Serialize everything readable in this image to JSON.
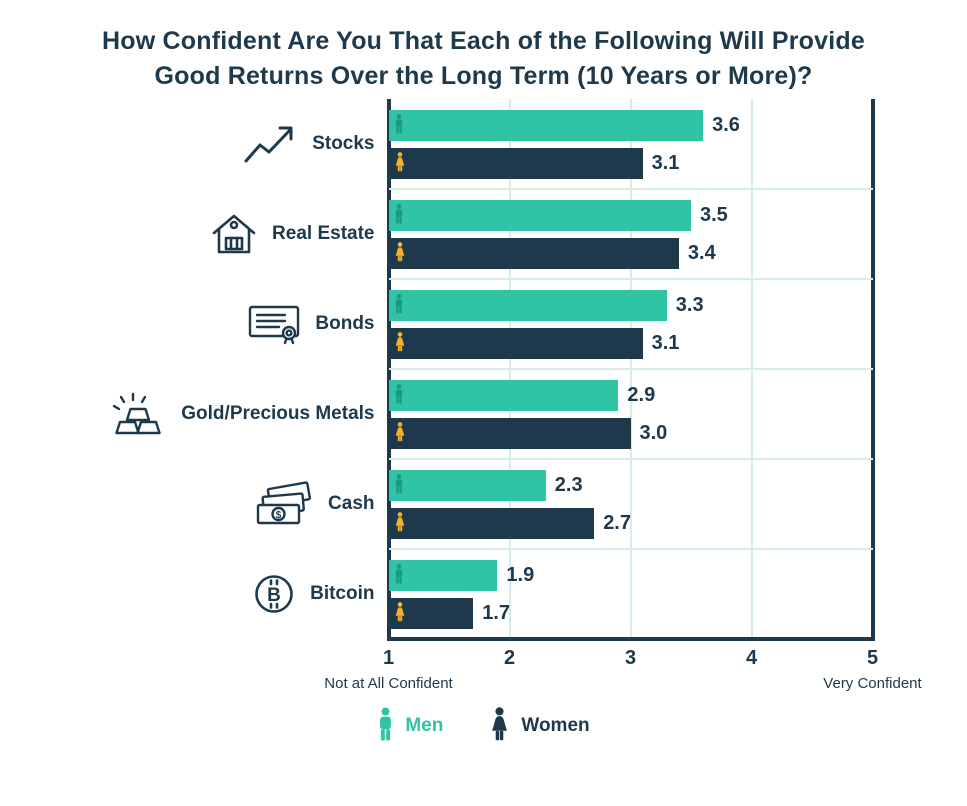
{
  "title": {
    "line1": "How Confident Are You That Each of the Following Will Provide",
    "line2": "Good Returns Over the Long Term (10 Years or More)?"
  },
  "chart_data": {
    "type": "bar",
    "orientation": "horizontal",
    "title": "How Confident Are You That Each of the Following Will Provide Good Returns Over the Long Term (10 Years or More)?",
    "categories": [
      "Stocks",
      "Real Estate",
      "Bonds",
      "Gold/Precious Metals",
      "Cash",
      "Bitcoin"
    ],
    "category_icons": [
      "stock-trend-icon",
      "house-icon",
      "certificate-icon",
      "gold-bars-icon",
      "cash-icon",
      "bitcoin-icon"
    ],
    "series": [
      {
        "name": "Men",
        "color": "#2fc4a4",
        "values": [
          3.6,
          3.5,
          3.3,
          2.9,
          2.3,
          1.9
        ]
      },
      {
        "name": "Women",
        "color": "#1d394b",
        "values": [
          3.1,
          3.4,
          3.1,
          3.0,
          2.7,
          1.7
        ]
      }
    ],
    "xlim": [
      1,
      5
    ],
    "x_ticks": [
      1,
      2,
      3,
      4,
      5
    ],
    "x_min_label": "Not at All Confident",
    "x_max_label": "Very Confident",
    "grid": "vertical-light",
    "legend_position": "bottom"
  },
  "legend": {
    "men_label": "Men",
    "women_label": "Women"
  },
  "colors": {
    "navy": "#1d394b",
    "teal": "#2fc4a4",
    "gold": "#f3b229",
    "grid": "#d5ece7",
    "man_icon_on_bar": "#1a9980"
  }
}
